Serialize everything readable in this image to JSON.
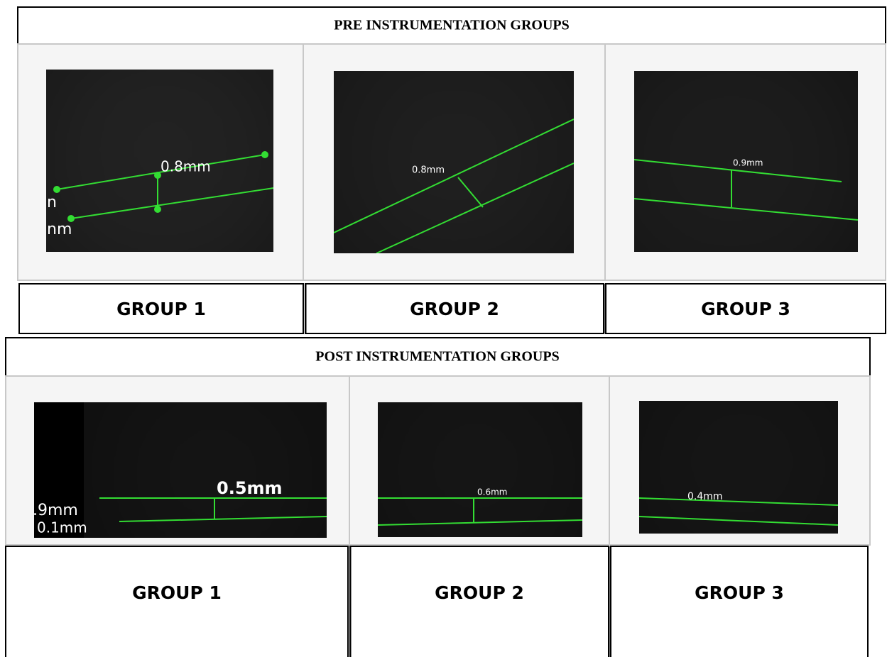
{
  "pre": {
    "title": "PRE INSTRUMENTATION GROUPS",
    "panels": [
      {
        "label": "GROUP 1",
        "annotations": [
          "0.8mm",
          "n",
          "nm"
        ]
      },
      {
        "label": "GROUP 2",
        "annotations": [
          "0.8mm"
        ]
      },
      {
        "label": "GROUP 3",
        "annotations": [
          "0.9mm"
        ]
      }
    ]
  },
  "post": {
    "title": "POST INSTRUMENTATION GROUPS",
    "panels": [
      {
        "label": "GROUP 1",
        "annotations": [
          "0.5mm",
          ".9mm",
          "0.1mm"
        ]
      },
      {
        "label": "GROUP 2",
        "annotations": [
          "0.6mm"
        ]
      },
      {
        "label": "GROUP 3",
        "annotations": [
          "0.4mm"
        ]
      }
    ]
  }
}
